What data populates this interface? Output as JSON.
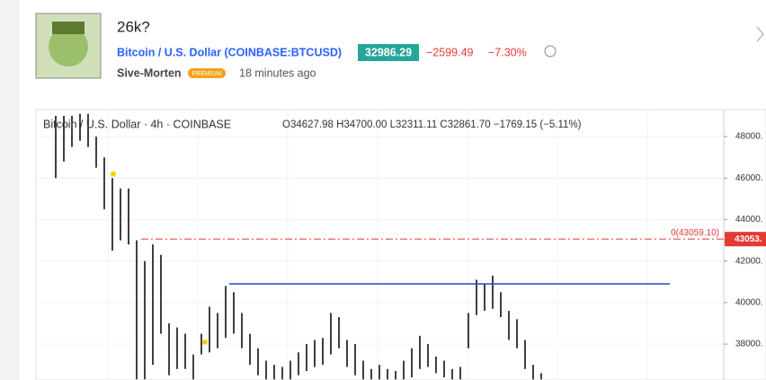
{
  "header": {
    "title": "26k?",
    "symbol": "Bitcoin / U.S. Dollar (COINBASE:BTCUSD)",
    "price": "32986.29",
    "change": "−2599.49",
    "change_pct": "−7.30%",
    "author": "Sive-Morten",
    "badge": "PREMIUM",
    "time": "18 minutes ago"
  },
  "chart_data": {
    "type": "ohlc",
    "legend": "Bitcoin / U.S. Dollar · 4h · COINBASE",
    "ohlc_text": "O34627.98 H34700.00 L32311.11 C32861.70 −1769.15 (−5.11%)",
    "high": [
      49000,
      49000,
      49000,
      49100,
      49100,
      48000,
      47000,
      46000,
      45500,
      45500,
      43000,
      42000,
      42800,
      42300,
      39000,
      38800,
      38500,
      37500,
      38500,
      39800,
      39500,
      40800,
      40500,
      39500,
      38500,
      37800,
      37200,
      37000,
      36900,
      37200,
      37600,
      38000,
      38200,
      38300,
      39500,
      39300,
      38200,
      38000,
      37200,
      36800,
      37000,
      36800,
      36700,
      37200,
      37800,
      38400,
      38000,
      37400,
      37200,
      36800,
      36900,
      39500,
      41100,
      40900,
      41300,
      40500,
      39600,
      39200,
      38200,
      37000,
      36600
    ],
    "low": [
      46000,
      46800,
      47500,
      47800,
      47500,
      46500,
      44500,
      42500,
      43000,
      42800,
      36300,
      36300,
      37000,
      38500,
      36500,
      36800,
      36800,
      36300,
      37500,
      37600,
      37800,
      38300,
      38500,
      37800,
      37000,
      36500,
      36300,
      36300,
      36300,
      36300,
      36500,
      36700,
      36900,
      37000,
      37500,
      37800,
      36900,
      36500,
      36300,
      36300,
      36300,
      36300,
      36300,
      36300,
      36400,
      36800,
      36900,
      36600,
      36400,
      36300,
      36300,
      37800,
      39400,
      39600,
      39700,
      39300,
      38200,
      37800,
      36800,
      36300,
      36300
    ],
    "color": "#000000",
    "ylim": [
      36270,
      49300
    ],
    "yticks": [
      {
        "value": 38000,
        "label": "38000."
      },
      {
        "value": 40000,
        "label": "40000."
      },
      {
        "value": 42000,
        "label": "42000."
      },
      {
        "value": 44000,
        "label": "44000."
      },
      {
        "value": 46000,
        "label": "46000."
      },
      {
        "value": 48000,
        "label": "48000."
      }
    ],
    "fib_level": 43059.1,
    "fib_label": "0(43059.10)",
    "price_tag": "43053.",
    "fib_color": "#e53935",
    "resistance": 40900,
    "resistance_color": "#1e4bc8",
    "markers": [
      46200,
      38100
    ],
    "marker_color": "#f5d000"
  }
}
